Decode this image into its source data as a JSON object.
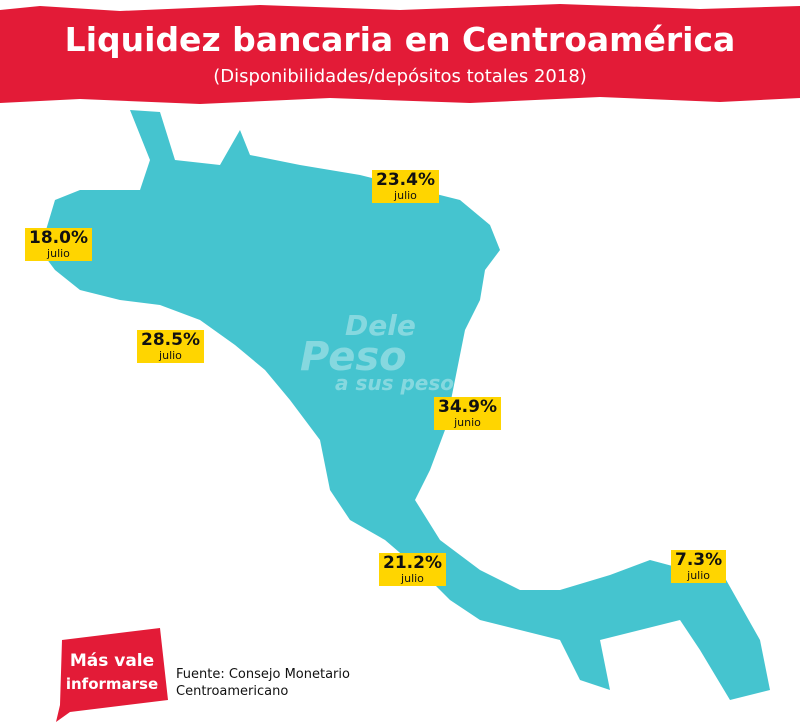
{
  "header": {
    "title": "Liquidez bancaria en Centroamérica",
    "subtitle": "(Disponibilidades/depósitos totales 2018)"
  },
  "labels": [
    {
      "value": "18.0%",
      "period": "julio"
    },
    {
      "value": "23.4%",
      "period": "julio"
    },
    {
      "value": "28.5%",
      "period": "julio"
    },
    {
      "value": "34.9%",
      "period": "junio"
    },
    {
      "value": "21.2%",
      "period": "julio"
    },
    {
      "value": "7.3%",
      "period": "julio"
    }
  ],
  "watermark": {
    "line1": "Dele",
    "line2": "Peso",
    "line3": "a sus pesos"
  },
  "logo": {
    "line1": "Más vale",
    "line2": "informarse"
  },
  "source": "Fuente: Consejo Monetario Centroamericano"
}
